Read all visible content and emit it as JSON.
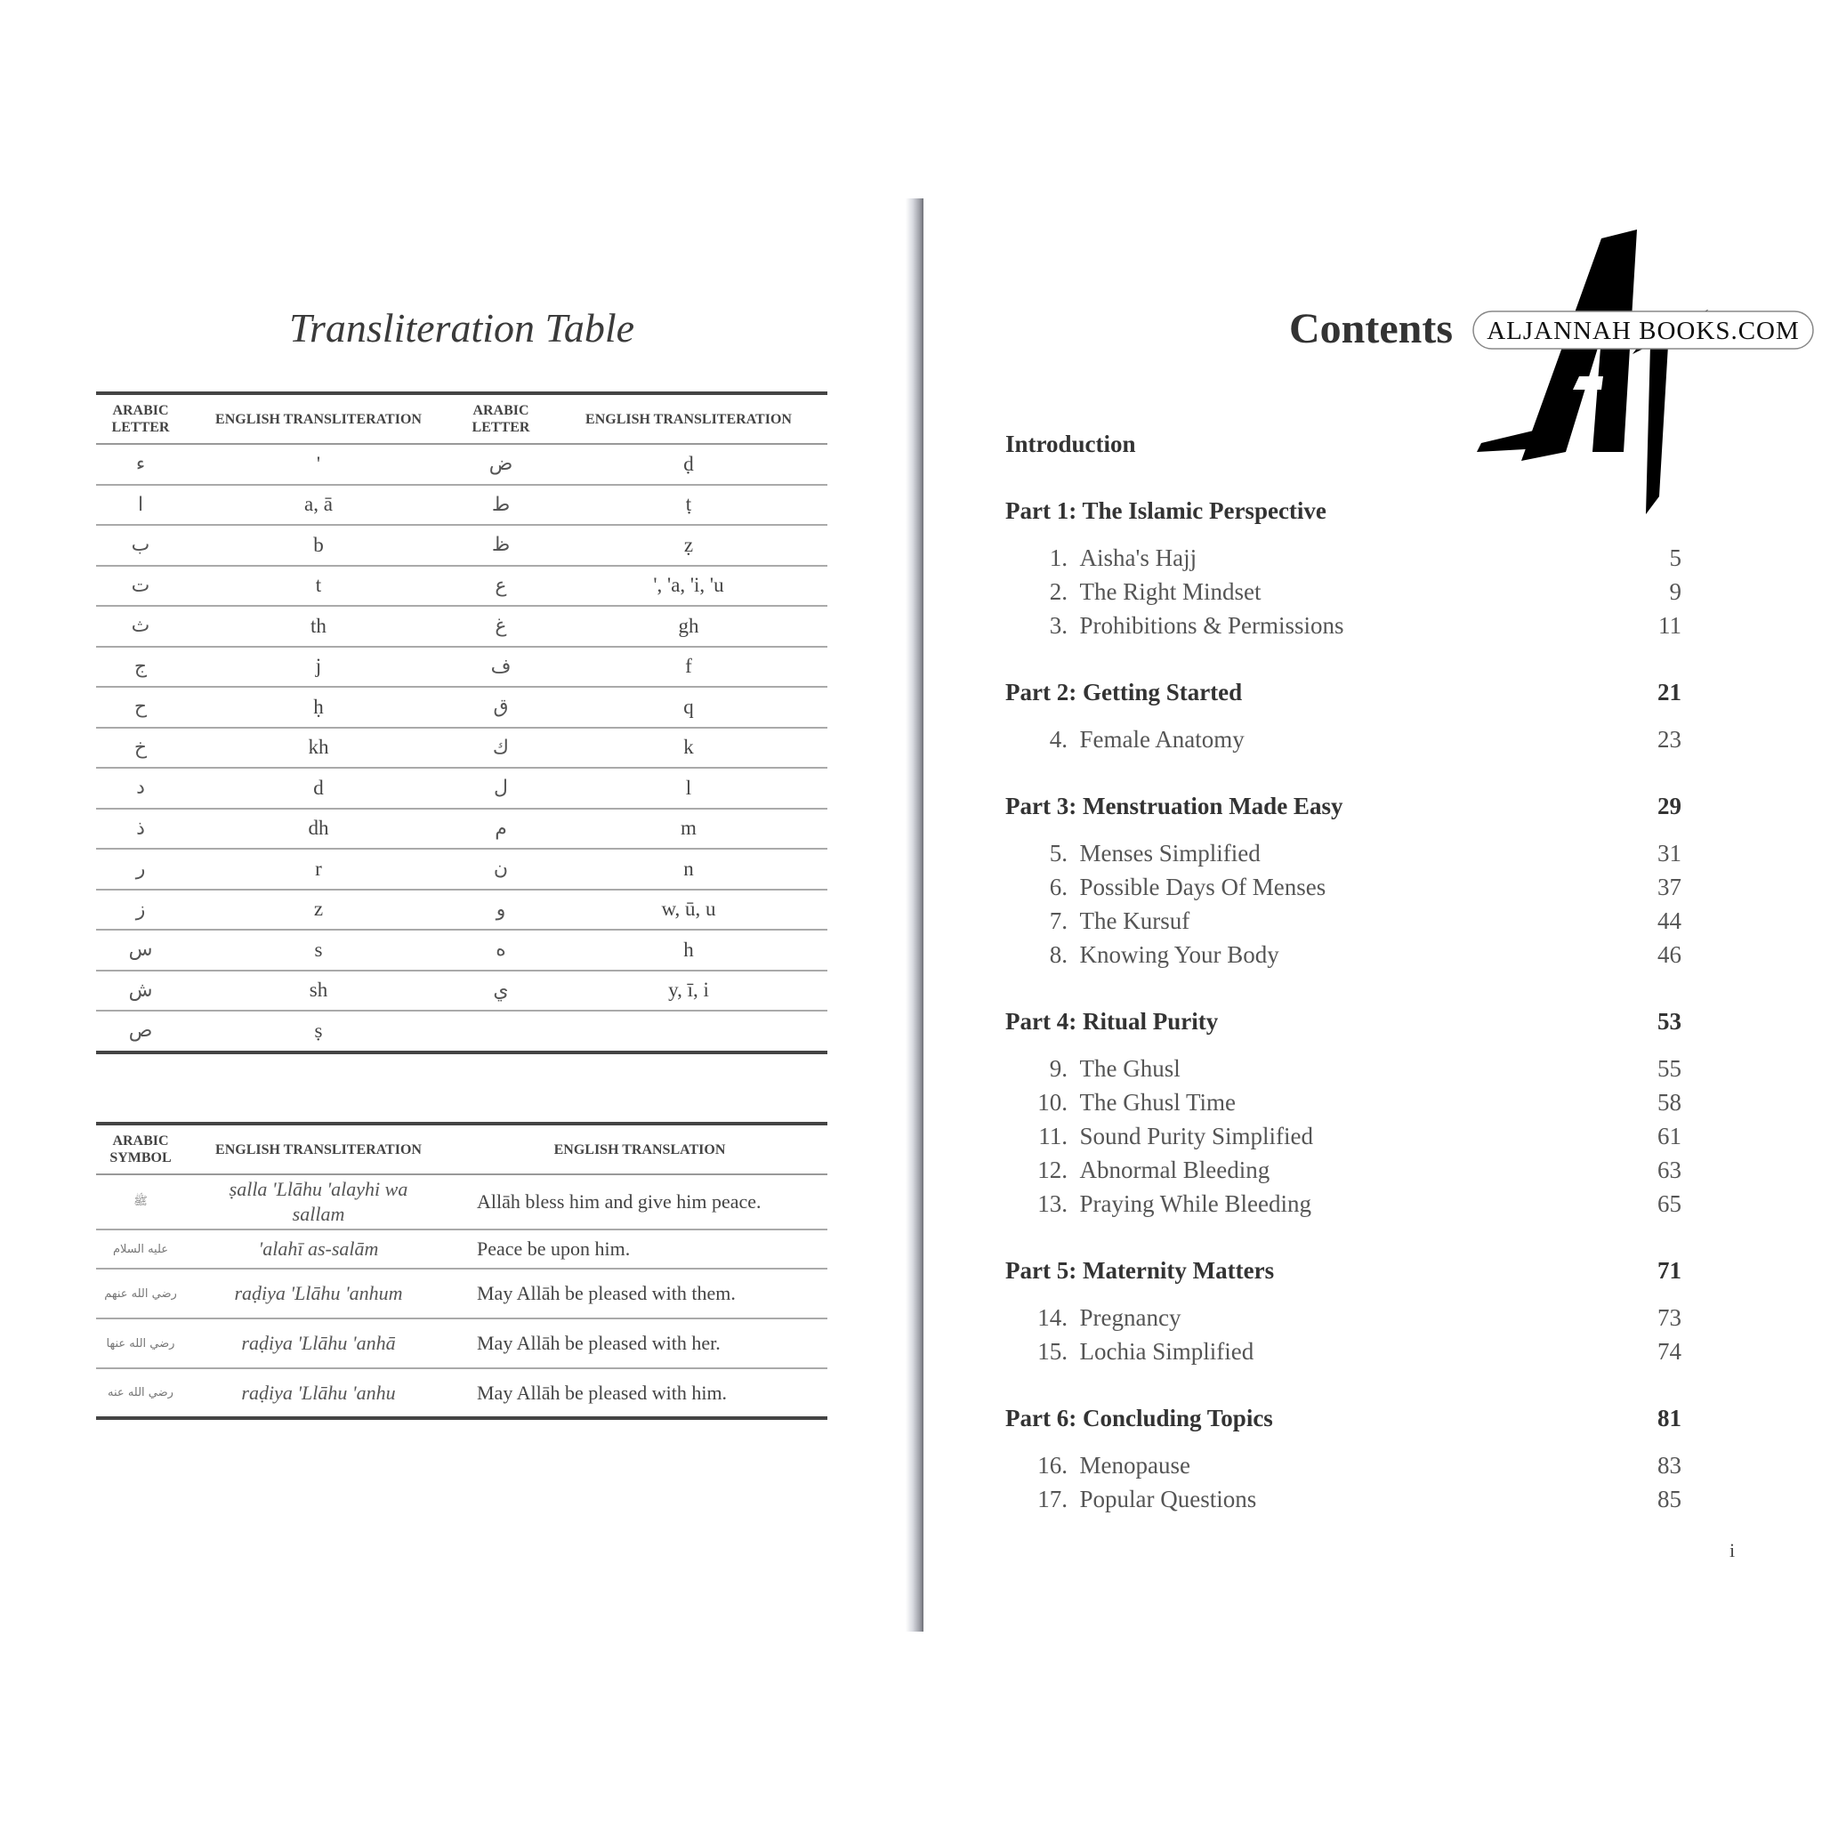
{
  "left_page": {
    "title": "Transliteration Table",
    "letters_table": {
      "headers": [
        "ARABIC LETTER",
        "ENGLISH TRANSLITERATION",
        "ARABIC LETTER",
        "ENGLISH TRANSLITERATION"
      ],
      "rows": [
        [
          "ء",
          "'",
          "ض",
          "ḍ"
        ],
        [
          "ا",
          "a, ā",
          "ط",
          "ṭ"
        ],
        [
          "ب",
          "b",
          "ظ",
          "ẓ"
        ],
        [
          "ت",
          "t",
          "ع",
          "', 'a, 'i, 'u"
        ],
        [
          "ث",
          "th",
          "غ",
          "gh"
        ],
        [
          "ج",
          "j",
          "ف",
          "f"
        ],
        [
          "ح",
          "ḥ",
          "ق",
          "q"
        ],
        [
          "خ",
          "kh",
          "ك",
          "k"
        ],
        [
          "د",
          "d",
          "ل",
          "l"
        ],
        [
          "ذ",
          "dh",
          "م",
          "m"
        ],
        [
          "ر",
          "r",
          "ن",
          "n"
        ],
        [
          "ز",
          "z",
          "و",
          "w, ū, u"
        ],
        [
          "س",
          "s",
          "ه",
          "h"
        ],
        [
          "ش",
          "sh",
          "ي",
          "y, ī, i"
        ],
        [
          "ص",
          "ṣ",
          "",
          ""
        ]
      ]
    },
    "symbols_table": {
      "headers": [
        "ARABIC SYMBOL",
        "ENGLISH TRANSLITERATION",
        "ENGLISH TRANSLATION"
      ],
      "rows": [
        [
          "ﷺ",
          "ṣalla 'Llāhu 'alayhi wa sallam",
          "Allāh bless him and give him peace."
        ],
        [
          "عليه السلام",
          "'alahī as-salām",
          "Peace be upon him."
        ],
        [
          "رضي الله عنهم",
          "raḍiya 'Llāhu 'anhum",
          "May Allāh be pleased with them."
        ],
        [
          "رضي الله عنها",
          "raḍiya 'Llāhu 'anhā",
          "May Allāh be pleased with her."
        ],
        [
          "رضي الله عنه",
          "raḍiya 'Llāhu 'anhu",
          "May Allāh be pleased with him."
        ]
      ]
    }
  },
  "right_page": {
    "title": "Contents",
    "toc": [
      {
        "type": "part",
        "label": "Introduction",
        "page": ""
      },
      {
        "type": "part",
        "label": "Part 1: The Islamic Perspective",
        "page": ""
      },
      {
        "type": "item",
        "index": "1.",
        "label": "Aisha's Hajj",
        "page": "5"
      },
      {
        "type": "item",
        "index": "2.",
        "label": "The Right Mindset",
        "page": "9"
      },
      {
        "type": "item",
        "index": "3.",
        "label": "Prohibitions & Permissions",
        "page": "11"
      },
      {
        "type": "part",
        "label": "Part 2: Getting Started",
        "page": "21"
      },
      {
        "type": "item",
        "index": "4.",
        "label": "Female Anatomy",
        "page": "23"
      },
      {
        "type": "part",
        "label": "Part 3: Menstruation Made Easy",
        "page": "29"
      },
      {
        "type": "item",
        "index": "5.",
        "label": "Menses Simplified",
        "page": "31"
      },
      {
        "type": "item",
        "index": "6.",
        "label": "Possible Days Of Menses",
        "page": "37"
      },
      {
        "type": "item",
        "index": "7.",
        "label": "The Kursuf",
        "page": "44"
      },
      {
        "type": "item",
        "index": "8.",
        "label": "Knowing Your Body",
        "page": "46"
      },
      {
        "type": "part",
        "label": "Part 4: Ritual Purity",
        "page": "53"
      },
      {
        "type": "item",
        "index": "9.",
        "label": "The Ghusl",
        "page": "55"
      },
      {
        "type": "item",
        "index": "10.",
        "label": "The Ghusl Time",
        "page": "58"
      },
      {
        "type": "item",
        "index": "11.",
        "label": "Sound Purity Simplified",
        "page": "61"
      },
      {
        "type": "item",
        "index": "12.",
        "label": "Abnormal Bleeding",
        "page": "63"
      },
      {
        "type": "item",
        "index": "13.",
        "label": "Praying While Bleeding",
        "page": "65"
      },
      {
        "type": "part",
        "label": "Part 5: Maternity Matters",
        "page": "71"
      },
      {
        "type": "item",
        "index": "14.",
        "label": "Pregnancy",
        "page": "73"
      },
      {
        "type": "item",
        "index": "15.",
        "label": "Lochia Simplified",
        "page": "74"
      },
      {
        "type": "part",
        "label": "Part 6: Concluding Topics",
        "page": "81"
      },
      {
        "type": "item",
        "index": "16.",
        "label": "Menopause",
        "page": "83"
      },
      {
        "type": "item",
        "index": "17.",
        "label": "Popular Questions",
        "page": "85"
      }
    ],
    "page_number": "i"
  },
  "watermark": {
    "text": "ALJANNAH BOOKS.COM",
    "monogram": "AJ"
  }
}
